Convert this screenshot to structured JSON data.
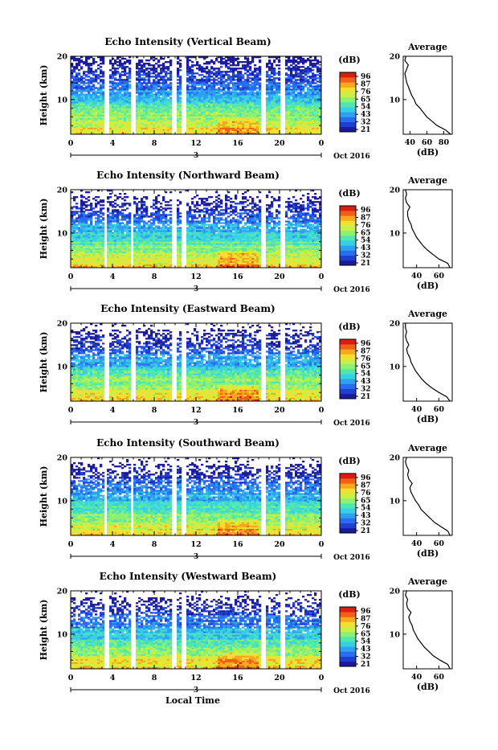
{
  "chart_data": [
    {
      "type": "heatmap",
      "title": "Echo Intensity (Vertical Beam)",
      "ylabel": "Height (km)",
      "yticks": [
        "20",
        "10"
      ],
      "xticks": [
        "0",
        "4",
        "8",
        "12",
        "16",
        "20",
        "0"
      ],
      "xlim": [
        0,
        24
      ],
      "ylim": [
        2,
        20
      ],
      "date_marker": "3",
      "month_label": "Oct 2016",
      "colorbar": {
        "label": "(dB)",
        "ticks": [
          "96",
          "87",
          "76",
          "65",
          "54",
          "43",
          "32",
          "21"
        ]
      },
      "data_gaps_hours": [
        3.2,
        5.8,
        9.7,
        10.7,
        18.2,
        20.1
      ],
      "average_profile": {
        "title": "Average",
        "xlabel": "(dB)",
        "xticks": [
          "40",
          "60",
          "80"
        ],
        "yticks": [
          "20",
          "10"
        ],
        "height_km": [
          2,
          3,
          4,
          5,
          6,
          7,
          8,
          9,
          10,
          11,
          12,
          13,
          14,
          15,
          16,
          17,
          18,
          19,
          20
        ],
        "db": [
          88,
          82,
          72,
          66,
          60,
          56,
          52,
          47,
          45,
          42,
          40,
          38,
          36,
          35,
          34,
          36,
          38,
          34,
          35
        ]
      }
    },
    {
      "type": "heatmap",
      "title": "Echo Intensity (Northward Beam)",
      "ylabel": "Height (km)",
      "yticks": [
        "20",
        "10"
      ],
      "xticks": [
        "0",
        "4",
        "8",
        "12",
        "16",
        "20",
        "0"
      ],
      "xlim": [
        0,
        24
      ],
      "ylim": [
        2,
        20
      ],
      "date_marker": "3",
      "month_label": "Oct 2016",
      "colorbar": {
        "label": "(dB)",
        "ticks": [
          "96",
          "87",
          "76",
          "65",
          "54",
          "43",
          "32",
          "21"
        ]
      },
      "data_gaps_hours": [
        3.2,
        5.8,
        9.7,
        10.7,
        18.2,
        20.1
      ],
      "average_profile": {
        "title": "Average",
        "xlabel": "(dB)",
        "xticks": [
          "40",
          "60"
        ],
        "yticks": [
          "20",
          "10"
        ],
        "height_km": [
          2,
          3,
          4,
          5,
          6,
          7,
          8,
          9,
          10,
          11,
          12,
          13,
          14,
          15,
          16,
          17,
          18,
          19,
          20
        ],
        "db": [
          70,
          68,
          60,
          55,
          50,
          46,
          43,
          40,
          38,
          36,
          35,
          33,
          32,
          32,
          34,
          31,
          30,
          31,
          30
        ]
      }
    },
    {
      "type": "heatmap",
      "title": "Echo Intensity (Eastward Beam)",
      "ylabel": "Height (km)",
      "yticks": [
        "20",
        "10"
      ],
      "xticks": [
        "0",
        "4",
        "8",
        "12",
        "16",
        "20",
        "0"
      ],
      "xlim": [
        0,
        24
      ],
      "ylim": [
        2,
        20
      ],
      "date_marker": "3",
      "month_label": "Oct 2016",
      "colorbar": {
        "label": "(dB)",
        "ticks": [
          "96",
          "87",
          "76",
          "65",
          "54",
          "43",
          "32",
          "21"
        ]
      },
      "data_gaps_hours": [
        3.2,
        5.8,
        9.7,
        10.7,
        18.2,
        20.1
      ],
      "average_profile": {
        "title": "Average",
        "xlabel": "(dB)",
        "xticks": [
          "40",
          "60"
        ],
        "yticks": [
          "20",
          "10"
        ],
        "height_km": [
          2,
          3,
          4,
          5,
          6,
          7,
          8,
          9,
          10,
          11,
          12,
          13,
          14,
          15,
          16,
          17,
          18,
          19,
          20
        ],
        "db": [
          70,
          67,
          60,
          54,
          49,
          45,
          42,
          39,
          37,
          35,
          34,
          32,
          31,
          33,
          31,
          30,
          31,
          30,
          30
        ]
      }
    },
    {
      "type": "heatmap",
      "title": "Echo Intensity (Southward Beam)",
      "ylabel": "Height (km)",
      "yticks": [
        "20",
        "10"
      ],
      "xticks": [
        "0",
        "4",
        "8",
        "12",
        "16",
        "20",
        "0"
      ],
      "xlim": [
        0,
        24
      ],
      "ylim": [
        2,
        20
      ],
      "date_marker": "3",
      "month_label": "Oct 2016",
      "colorbar": {
        "label": "(dB)",
        "ticks": [
          "96",
          "87",
          "76",
          "65",
          "54",
          "43",
          "32",
          "21"
        ]
      },
      "data_gaps_hours": [
        3.2,
        5.8,
        9.7,
        10.7,
        18.2,
        20.1
      ],
      "average_profile": {
        "title": "Average",
        "xlabel": "(dB)",
        "xticks": [
          "40",
          "60"
        ],
        "yticks": [
          "20",
          "10"
        ],
        "height_km": [
          2,
          3,
          4,
          5,
          6,
          7,
          8,
          9,
          10,
          11,
          12,
          13,
          14,
          15,
          16,
          17,
          18,
          19,
          20
        ],
        "db": [
          70,
          68,
          62,
          56,
          52,
          48,
          44,
          42,
          39,
          37,
          35,
          34,
          36,
          33,
          32,
          33,
          31,
          30,
          31
        ]
      }
    },
    {
      "type": "heatmap",
      "title": "Echo Intensity (Westward Beam)",
      "ylabel": "Height (km)",
      "yticks": [
        "20",
        "10"
      ],
      "xticks": [
        "0",
        "4",
        "8",
        "12",
        "16",
        "20",
        "0"
      ],
      "xlim": [
        0,
        24
      ],
      "ylim": [
        2,
        20
      ],
      "date_marker": "3",
      "month_label": "Oct 2016",
      "xlabel": "Local Time",
      "colorbar": {
        "label": "(dB)",
        "ticks": [
          "96",
          "87",
          "76",
          "65",
          "54",
          "43",
          "32",
          "21"
        ]
      },
      "data_gaps_hours": [
        3.2,
        5.8,
        9.7,
        10.7,
        18.2,
        20.1
      ],
      "average_profile": {
        "title": "Average",
        "xlabel": "(dB)",
        "xticks": [
          "40",
          "60"
        ],
        "yticks": [
          "20",
          "10"
        ],
        "height_km": [
          2,
          3,
          4,
          5,
          6,
          7,
          8,
          9,
          10,
          11,
          12,
          13,
          14,
          15,
          16,
          17,
          18,
          19,
          20
        ],
        "db": [
          70,
          68,
          61,
          55,
          51,
          47,
          44,
          41,
          39,
          37,
          36,
          34,
          33,
          35,
          32,
          31,
          32,
          30,
          31
        ]
      }
    }
  ]
}
